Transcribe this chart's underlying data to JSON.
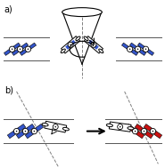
{
  "bg_color": "#ffffff",
  "label_a": "a)",
  "label_b": "b)",
  "blue_color": "#3355cc",
  "red_color": "#cc1111",
  "gray_color": "#888888",
  "light_gray": "#cccccc",
  "dark_gray": "#444444"
}
